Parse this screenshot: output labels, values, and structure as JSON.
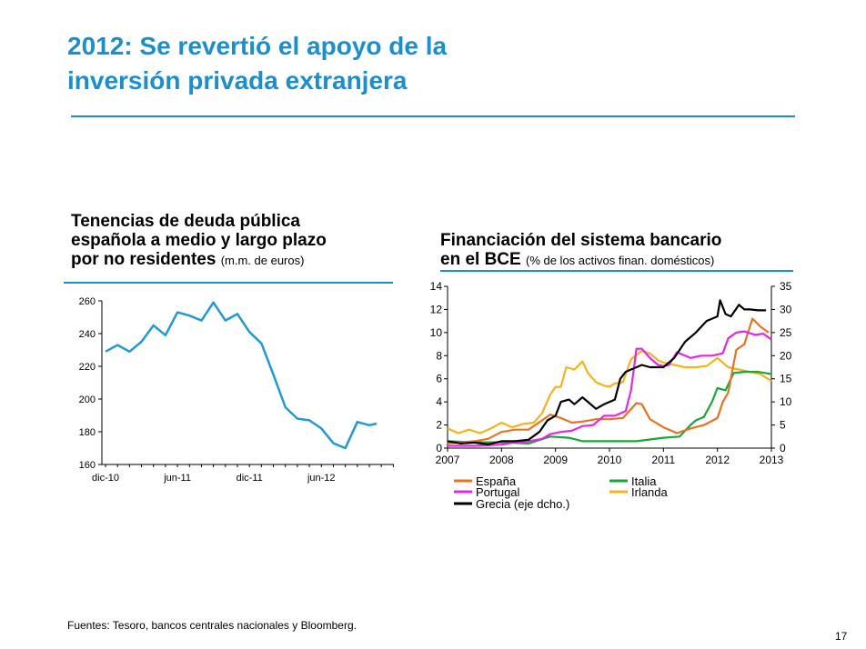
{
  "page": {
    "title_line1": "2012: Se revertió el apoyo de la",
    "title_line2": "inversión privada extranjera",
    "footer": "Fuentes: Tesoro, bancos centrales nacionales y Bloomberg.",
    "page_number": "17",
    "accent_color": "#1a8fd0"
  },
  "chart_data": [
    {
      "type": "line",
      "title_line1": "Tenencias de deuda pública",
      "title_line2": "española a medio y largo plazo",
      "title_line3": "por no residentes",
      "title_note": "(m.m. de euros)",
      "ylim": [
        160,
        260
      ],
      "yticks": [
        "160",
        "180",
        "200",
        "220",
        "240",
        "260"
      ],
      "xticks": [
        "dic-10",
        "jun-11",
        "dic-11",
        "jun-12"
      ],
      "x_range": [
        0,
        22
      ],
      "xtick_positions": [
        0,
        6,
        12,
        18
      ],
      "grid": false,
      "series": [
        {
          "color": "#1f9ad6",
          "x": [
            0,
            1,
            2,
            3,
            4,
            5,
            6,
            7,
            8,
            9,
            10,
            11,
            12,
            13,
            14,
            15,
            16,
            17,
            18,
            19,
            20,
            21,
            22
          ],
          "values": [
            229,
            233,
            229,
            235,
            245,
            239,
            253,
            251,
            248,
            259,
            248,
            252,
            241,
            234,
            215,
            195,
            188,
            187,
            182,
            173,
            170,
            186,
            184
          ]
        }
      ],
      "extra_points": [
        [
          22.6,
          185
        ]
      ]
    },
    {
      "type": "line",
      "title_line1": "Financiación del sistema bancario",
      "title_line2": "en el BCE",
      "title_note": "(% de los activos finan. domésticos)",
      "xlim": [
        2007,
        2013
      ],
      "xticks": [
        "2007",
        "2008",
        "2009",
        "2010",
        "2011",
        "2012",
        "2013"
      ],
      "ylim": [
        0,
        14
      ],
      "yticks": [
        "0",
        "2",
        "4",
        "6",
        "8",
        "10",
        "12",
        "14"
      ],
      "y2lim": [
        0,
        35
      ],
      "y2ticks": [
        "0",
        "5",
        "10",
        "15",
        "20",
        "25",
        "30",
        "35"
      ],
      "grid": false,
      "legend": "bottom",
      "series": [
        {
          "name": "España",
          "color": "#e8731f",
          "axis": "left",
          "x": [
            2007.0,
            2007.25,
            2007.5,
            2007.75,
            2008.0,
            2008.25,
            2008.5,
            2008.75,
            2008.9,
            2009.1,
            2009.3,
            2009.5,
            2009.75,
            2010.0,
            2010.25,
            2010.5,
            2010.6,
            2010.75,
            2011.0,
            2011.25,
            2011.5,
            2011.75,
            2012.0,
            2012.1,
            2012.2,
            2012.35,
            2012.5,
            2012.65,
            2012.8,
            2012.95
          ],
          "values": [
            0.4,
            0.5,
            0.6,
            0.8,
            1.4,
            1.6,
            1.6,
            2.4,
            2.9,
            2.6,
            2.2,
            2.3,
            2.5,
            2.5,
            2.6,
            3.9,
            3.8,
            2.5,
            1.8,
            1.3,
            1.7,
            2.0,
            2.6,
            4.0,
            4.8,
            8.5,
            9.0,
            11.2,
            10.5,
            10.0
          ]
        },
        {
          "name": "Italia",
          "color": "#1aa63a",
          "axis": "left",
          "x": [
            2007.0,
            2007.5,
            2008.0,
            2008.5,
            2008.9,
            2009.25,
            2009.5,
            2010.0,
            2010.5,
            2011.0,
            2011.3,
            2011.5,
            2011.6,
            2011.75,
            2011.9,
            2012.0,
            2012.15,
            2012.3,
            2012.5,
            2012.75,
            2013.0
          ],
          "values": [
            0.6,
            0.5,
            0.5,
            0.4,
            1.0,
            0.9,
            0.6,
            0.6,
            0.6,
            0.9,
            1.0,
            2.0,
            2.4,
            2.7,
            4.0,
            5.2,
            5.0,
            6.5,
            6.6,
            6.6,
            6.4
          ]
        },
        {
          "name": "Portugal",
          "color": "#e626e6",
          "axis": "left",
          "x": [
            2007.0,
            2007.5,
            2008.0,
            2008.25,
            2008.5,
            2008.75,
            2008.9,
            2009.1,
            2009.3,
            2009.5,
            2009.7,
            2009.9,
            2010.1,
            2010.3,
            2010.4,
            2010.5,
            2010.6,
            2010.75,
            2010.9,
            2011.0,
            2011.1,
            2011.25,
            2011.35,
            2011.5,
            2011.7,
            2011.9,
            2012.1,
            2012.2,
            2012.35,
            2012.5,
            2012.7,
            2012.85,
            2013.0
          ],
          "values": [
            0.2,
            0.2,
            0.3,
            0.5,
            0.6,
            0.8,
            1.2,
            1.4,
            1.5,
            1.9,
            2.0,
            2.8,
            2.8,
            3.2,
            5.0,
            8.6,
            8.6,
            7.8,
            7.2,
            7.1,
            7.2,
            8.3,
            8.1,
            7.8,
            8.0,
            8.0,
            8.2,
            9.5,
            10.0,
            10.1,
            9.8,
            9.9,
            9.4
          ]
        },
        {
          "name": "Irlanda",
          "color": "#f4b41a",
          "axis": "left",
          "x": [
            2007.0,
            2007.2,
            2007.4,
            2007.6,
            2007.8,
            2008.0,
            2008.2,
            2008.4,
            2008.6,
            2008.75,
            2008.9,
            2009.0,
            2009.1,
            2009.2,
            2009.35,
            2009.5,
            2009.6,
            2009.75,
            2009.9,
            2010.0,
            2010.1,
            2010.25,
            2010.4,
            2010.6,
            2010.75,
            2010.9,
            2011.0,
            2011.2,
            2011.4,
            2011.6,
            2011.8,
            2012.0,
            2012.2,
            2012.4,
            2012.6,
            2012.8,
            2013.0
          ],
          "values": [
            1.7,
            1.3,
            1.6,
            1.3,
            1.7,
            2.2,
            1.8,
            2.1,
            2.2,
            3.0,
            4.6,
            5.3,
            5.3,
            7.0,
            6.8,
            7.5,
            6.5,
            5.7,
            5.4,
            5.3,
            5.6,
            5.7,
            7.7,
            8.4,
            8.2,
            7.6,
            7.4,
            7.2,
            7.0,
            7.0,
            7.1,
            7.8,
            7.0,
            6.8,
            6.6,
            6.4,
            5.8
          ]
        },
        {
          "name": "Grecia (eje dcho.)",
          "color": "#000000",
          "axis": "right",
          "x": [
            2007.0,
            2007.25,
            2007.5,
            2007.75,
            2008.0,
            2008.25,
            2008.5,
            2008.7,
            2008.85,
            2009.0,
            2009.1,
            2009.25,
            2009.35,
            2009.5,
            2009.6,
            2009.75,
            2009.9,
            2010.1,
            2010.2,
            2010.3,
            2010.4,
            2010.5,
            2010.6,
            2010.75,
            2011.0,
            2011.2,
            2011.4,
            2011.6,
            2011.8,
            2012.0,
            2012.05,
            2012.15,
            2012.25,
            2012.4,
            2012.5,
            2012.6,
            2012.75,
            2012.9
          ],
          "values": [
            1.5,
            1.0,
            1.2,
            0.8,
            1.5,
            1.5,
            1.8,
            3.5,
            6.0,
            7.0,
            10.0,
            10.5,
            9.5,
            11.0,
            10.0,
            8.5,
            9.5,
            10.5,
            15.0,
            16.5,
            17.0,
            17.5,
            18.0,
            17.5,
            17.5,
            19.5,
            23.0,
            25.0,
            27.5,
            28.5,
            32.0,
            29.0,
            28.5,
            31.0,
            30.0,
            30.0,
            29.8,
            29.8
          ]
        }
      ]
    }
  ]
}
